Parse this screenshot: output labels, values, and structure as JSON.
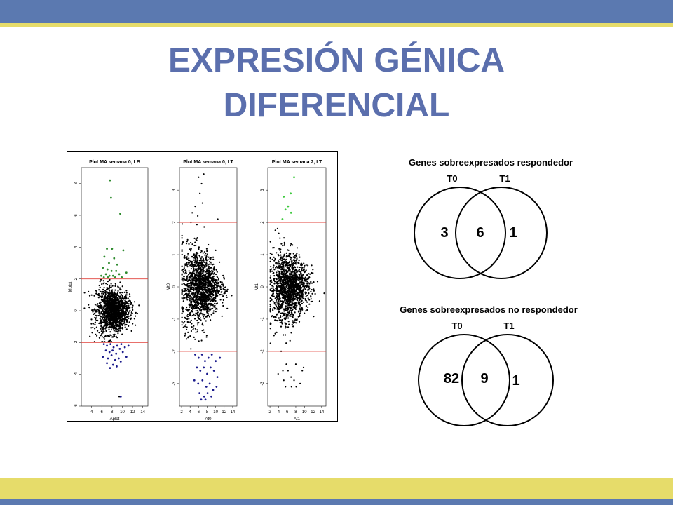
{
  "slide": {
    "title_line1": "EXPRESIÓN GÉNICA",
    "title_line2": "DIFERENCIAL",
    "colors": {
      "band_blue": "#5b79b0",
      "band_yellow": "#e6dc6a",
      "title_blue": "#5b6fad"
    }
  },
  "chart_data": [
    {
      "type": "scatter",
      "title": "Plot MA semana 0, LB",
      "xlabel": "Aplot",
      "ylabel": "Mplot",
      "xlim": [
        2,
        15
      ],
      "ylim": [
        -6,
        9
      ],
      "xticks": [
        "4",
        "6",
        "8",
        "10",
        "12",
        "14"
      ],
      "yticks": [
        "-6",
        "-4",
        "-2",
        "0",
        "2",
        "4",
        "6",
        "8"
      ],
      "thresholds": [
        2,
        -2
      ],
      "cloud": {
        "x_center": 8.2,
        "x_spread": 1.6,
        "y_spread": 0.75
      },
      "highlights": [
        {
          "color": "#2e8b2e",
          "points": [
            [
              7.6,
              8.2
            ],
            [
              7.8,
              7.1
            ],
            [
              9.6,
              6.1
            ],
            [
              7.0,
              3.9
            ],
            [
              8.0,
              3.9
            ],
            [
              10.2,
              3.8
            ],
            [
              6.5,
              3.4
            ],
            [
              7.4,
              3.0
            ],
            [
              8.4,
              3.3
            ],
            [
              9.0,
              2.9
            ],
            [
              6.2,
              2.7
            ],
            [
              7.1,
              2.6
            ],
            [
              7.9,
              2.5
            ],
            [
              8.8,
              2.5
            ],
            [
              6.8,
              2.3
            ],
            [
              7.5,
              2.2
            ],
            [
              8.2,
              2.2
            ],
            [
              9.4,
              2.3
            ],
            [
              10.8,
              2.4
            ],
            [
              6.4,
              2.1
            ],
            [
              7.2,
              2.1
            ],
            [
              8.6,
              2.1
            ],
            [
              9.9,
              2.1
            ],
            [
              5.9,
              2.2
            ]
          ]
        },
        {
          "color": "#1a1a8c",
          "points": [
            [
              6.4,
              -2.1
            ],
            [
              7.0,
              -2.2
            ],
            [
              7.7,
              -2.1
            ],
            [
              8.3,
              -2.3
            ],
            [
              9.0,
              -2.2
            ],
            [
              9.8,
              -2.1
            ],
            [
              10.5,
              -2.3
            ],
            [
              11.2,
              -2.2
            ],
            [
              6.8,
              -2.5
            ],
            [
              7.5,
              -2.6
            ],
            [
              8.1,
              -2.5
            ],
            [
              8.8,
              -2.7
            ],
            [
              9.5,
              -2.4
            ],
            [
              10.1,
              -2.6
            ],
            [
              6.2,
              -2.9
            ],
            [
              7.2,
              -3.0
            ],
            [
              7.9,
              -2.8
            ],
            [
              8.6,
              -3.1
            ],
            [
              9.3,
              -3.0
            ],
            [
              10.8,
              -2.9
            ],
            [
              7.0,
              -3.3
            ],
            [
              8.2,
              -3.4
            ],
            [
              9.7,
              -3.2
            ],
            [
              7.6,
              -3.6
            ],
            [
              8.9,
              -3.5
            ],
            [
              9.7,
              -5.4
            ]
          ]
        }
      ],
      "black_outliers": [
        [
          9.4,
          -5.4
        ]
      ]
    },
    {
      "type": "scatter",
      "title": "Plot MA semana 0, LT",
      "xlabel": "At0",
      "ylabel": "Mt0",
      "xlim": [
        1.5,
        15
      ],
      "ylim": [
        -3.7,
        3.7
      ],
      "xticks": [
        "2",
        "4",
        "6",
        "8",
        "10",
        "12",
        "14"
      ],
      "yticks": [
        "-3",
        "-2",
        "-1",
        "0",
        "1",
        "2",
        "3"
      ],
      "thresholds": [
        2,
        -2
      ],
      "cloud": {
        "x_center": 6.5,
        "x_spread": 2.2,
        "y_spread": 0.55
      },
      "highlights": [
        {
          "color": "#1a1a8c",
          "points": [
            [
              5.2,
              -2.1
            ],
            [
              6.0,
              -2.2
            ],
            [
              6.8,
              -2.1
            ],
            [
              7.5,
              -2.3
            ],
            [
              8.3,
              -2.2
            ],
            [
              9.1,
              -2.1
            ],
            [
              10.0,
              -2.3
            ],
            [
              11.0,
              -2.2
            ],
            [
              5.6,
              -2.5
            ],
            [
              6.4,
              -2.6
            ],
            [
              7.2,
              -2.5
            ],
            [
              8.0,
              -2.7
            ],
            [
              8.8,
              -2.5
            ],
            [
              9.6,
              -2.6
            ],
            [
              10.4,
              -2.8
            ],
            [
              5.0,
              -2.9
            ],
            [
              5.9,
              -3.0
            ],
            [
              6.9,
              -2.9
            ],
            [
              7.8,
              -3.1
            ],
            [
              8.6,
              -3.0
            ],
            [
              9.4,
              -3.2
            ],
            [
              10.2,
              -3.1
            ],
            [
              6.2,
              -3.3
            ],
            [
              7.3,
              -3.4
            ],
            [
              8.1,
              -3.3
            ],
            [
              9.0,
              -3.4
            ],
            [
              6.6,
              -3.5
            ],
            [
              7.6,
              -3.5
            ]
          ]
        }
      ],
      "black_outliers": [
        [
          7.2,
          3.5
        ],
        [
          6.0,
          3.4
        ],
        [
          6.7,
          3.2
        ],
        [
          6.3,
          2.9
        ],
        [
          6.9,
          2.6
        ],
        [
          5.2,
          2.5
        ],
        [
          4.5,
          2.3
        ],
        [
          5.8,
          2.2
        ],
        [
          10.5,
          2.1
        ],
        [
          4.2,
          2.0
        ]
      ]
    },
    {
      "type": "scatter",
      "title": "Plot MA semana 2, LT",
      "xlabel": "At1",
      "ylabel": "Mt1",
      "xlim": [
        1.5,
        15
      ],
      "ylim": [
        -3.7,
        3.7
      ],
      "xticks": [
        "2",
        "4",
        "6",
        "8",
        "10",
        "12",
        "14"
      ],
      "yticks": [
        "-3",
        "-2",
        "-1",
        "0",
        "1",
        "2",
        "3"
      ],
      "thresholds": [
        2,
        -2
      ],
      "cloud": {
        "x_center": 6.5,
        "x_spread": 2.2,
        "y_spread": 0.5
      },
      "highlights": [
        {
          "color": "#3ec93e",
          "points": [
            [
              7.6,
              3.4
            ],
            [
              6.8,
              2.9
            ],
            [
              5.2,
              2.8
            ],
            [
              6.2,
              2.5
            ],
            [
              5.6,
              2.4
            ],
            [
              6.9,
              2.3
            ],
            [
              4.9,
              2.1
            ]
          ]
        }
      ],
      "black_outliers": [
        [
          4.6,
          -2.0
        ],
        [
          5.8,
          -2.4
        ],
        [
          8.0,
          -2.4
        ],
        [
          6.2,
          -2.6
        ],
        [
          3.9,
          -2.7
        ],
        [
          5.0,
          -2.6
        ],
        [
          9.5,
          -2.6
        ],
        [
          6.9,
          -2.8
        ],
        [
          5.2,
          -2.9
        ],
        [
          7.6,
          -2.9
        ],
        [
          9.0,
          -3.0
        ],
        [
          5.6,
          -3.1
        ],
        [
          8.1,
          -3.1
        ],
        [
          7.0,
          -3.1
        ],
        [
          9.8,
          -2.5
        ]
      ]
    }
  ],
  "venns": [
    {
      "title": "Genes sobreexpresados  respondedor",
      "set_labels": [
        "T0",
        "T1"
      ],
      "values": {
        "only_t0": "3",
        "both": "6",
        "only_t1": "1"
      }
    },
    {
      "title": "Genes sobreexpresados no respondedor",
      "set_labels": [
        "T0",
        "T1"
      ],
      "values": {
        "only_t0": "82",
        "both": "9",
        "only_t1": "1"
      }
    }
  ]
}
